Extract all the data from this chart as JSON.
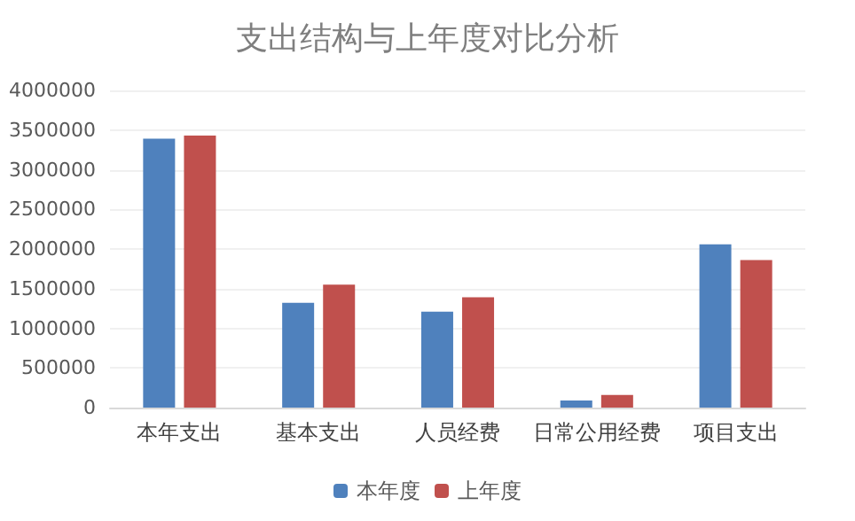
{
  "chart_data": {
    "type": "bar",
    "title": "支出结构与上年度对比分析",
    "categories": [
      "本年支出",
      "基本支出",
      "人员经费",
      "日常公用经费",
      "项目支出"
    ],
    "series": [
      {
        "name": "本年度",
        "color": "#4f81bd",
        "values": [
          3390000,
          1320000,
          1210000,
          90000,
          2060000
        ]
      },
      {
        "name": "上年度",
        "color": "#c0504d",
        "values": [
          3430000,
          1550000,
          1390000,
          160000,
          1860000
        ]
      }
    ],
    "ylim": [
      0,
      4000000
    ],
    "yticks": [
      0,
      500000,
      1000000,
      1500000,
      2000000,
      2500000,
      3000000,
      3500000,
      4000000
    ],
    "grid": "y",
    "legend": "bottom"
  }
}
